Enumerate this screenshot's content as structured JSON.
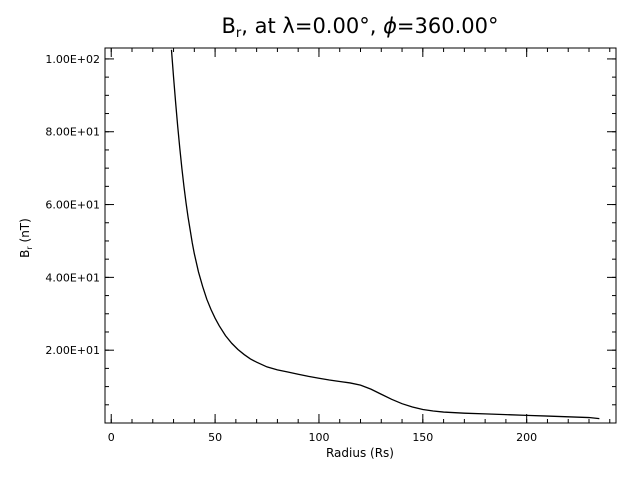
{
  "chart_data": {
    "type": "line",
    "title": {
      "b": "B",
      "r": "r",
      "pre_lambda": ", at ",
      "lambda_symbol": "λ",
      "lambda_value": "=0.00°, ",
      "phi_symbol": "ϕ",
      "phi_value": "=360.00°"
    },
    "xlabel": "Radius (Rs)",
    "ylabel": {
      "b": "B",
      "r": "r",
      "unit": " (nT)"
    },
    "xlim": [
      -3,
      243
    ],
    "ylim": [
      0,
      103
    ],
    "x_ticks": [
      {
        "value": 0,
        "label": "0"
      },
      {
        "value": 50,
        "label": "50"
      },
      {
        "value": 100,
        "label": "100"
      },
      {
        "value": 150,
        "label": "150"
      },
      {
        "value": 200,
        "label": "200"
      }
    ],
    "y_ticks": [
      {
        "value": 20,
        "label": "2.00E+01"
      },
      {
        "value": 40,
        "label": "4.00E+01"
      },
      {
        "value": 60,
        "label": "6.00E+01"
      },
      {
        "value": 80,
        "label": "8.00E+01"
      },
      {
        "value": 100,
        "label": "1.00E+02"
      }
    ],
    "x_minor_step": 10,
    "y_minor_step": 5,
    "grid": false,
    "line_color": "#000000",
    "series": [
      {
        "x": [
          29,
          30,
          31,
          32,
          33,
          34,
          35,
          36,
          37,
          38,
          39,
          40,
          42,
          44,
          46,
          48,
          50,
          52,
          55,
          58,
          61,
          64,
          67,
          70,
          75,
          80,
          85,
          90,
          95,
          100,
          105,
          110,
          115,
          120,
          125,
          130,
          135,
          140,
          145,
          150,
          155,
          160,
          170,
          180,
          190,
          200,
          210,
          220,
          230,
          235
        ],
        "y": [
          102.5,
          95.0,
          88.0,
          81.5,
          75.5,
          70.0,
          65.0,
          60.5,
          56.5,
          53.0,
          49.5,
          46.5,
          41.5,
          37.5,
          34.0,
          31.2,
          28.8,
          26.7,
          24.0,
          21.9,
          20.2,
          18.8,
          17.6,
          16.7,
          15.4,
          14.6,
          14.0,
          13.4,
          12.8,
          12.3,
          11.8,
          11.4,
          11.0,
          10.4,
          9.3,
          7.9,
          6.5,
          5.3,
          4.4,
          3.7,
          3.3,
          3.0,
          2.7,
          2.5,
          2.3,
          2.1,
          1.9,
          1.7,
          1.5,
          1.2
        ]
      }
    ]
  }
}
